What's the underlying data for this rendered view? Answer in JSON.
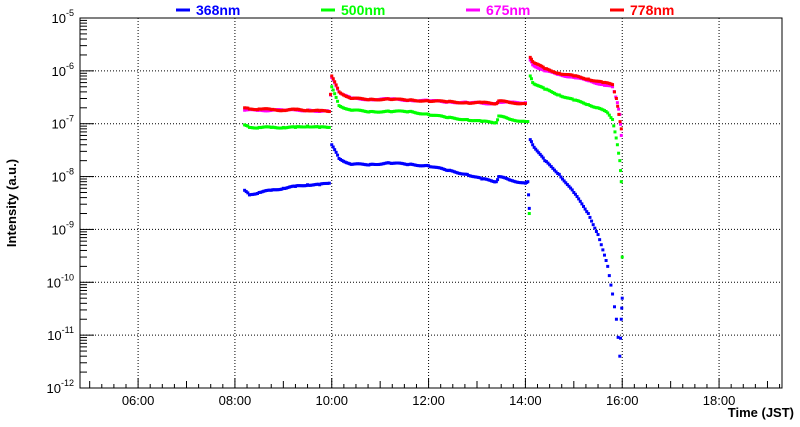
{
  "chart_data": {
    "type": "scatter",
    "title": "",
    "xlabel": "Time (JST)",
    "ylabel": "Intensity (a.u.)",
    "x_unit": "hours (JST)",
    "xlim": [
      4.8,
      19.3
    ],
    "ylim": [
      1e-12,
      1e-05
    ],
    "y_scale": "log",
    "grid": true,
    "legend_position": "top",
    "x_ticks": [
      {
        "value": 6,
        "label": "06:00"
      },
      {
        "value": 8,
        "label": "08:00"
      },
      {
        "value": 10,
        "label": "10:00"
      },
      {
        "value": 12,
        "label": "12:00"
      },
      {
        "value": 14,
        "label": "14:00"
      },
      {
        "value": 16,
        "label": "16:00"
      },
      {
        "value": 18,
        "label": "18:00"
      }
    ],
    "y_ticks": [
      {
        "value": 1e-12,
        "base": "10",
        "exp": "-12"
      },
      {
        "value": 1e-11,
        "base": "10",
        "exp": "-11"
      },
      {
        "value": 1e-10,
        "base": "10",
        "exp": "-10"
      },
      {
        "value": 1e-09,
        "base": "10",
        "exp": "-9"
      },
      {
        "value": 1e-08,
        "base": "10",
        "exp": "-8"
      },
      {
        "value": 1e-07,
        "base": "10",
        "exp": "-7"
      },
      {
        "value": 1e-06,
        "base": "10",
        "exp": "-6"
      },
      {
        "value": 1e-05,
        "base": "10",
        "exp": "-5"
      }
    ],
    "series": [
      {
        "name": "368nm",
        "color": "#0000ff",
        "x": [
          8.2,
          8.3,
          8.5,
          8.75,
          9.0,
          9.25,
          9.5,
          9.75,
          9.95,
          10.0,
          10.15,
          10.4,
          10.8,
          11.2,
          11.6,
          12.0,
          12.4,
          12.8,
          13.1,
          13.4,
          13.45,
          13.7,
          14.0,
          14.05,
          14.08,
          14.1,
          14.15,
          14.4,
          14.7,
          15.0,
          15.3,
          15.5,
          15.7,
          15.8,
          15.88,
          15.95,
          15.98,
          16.0
        ],
        "y": [
          5.5e-09,
          4.5e-09,
          5e-09,
          5.5e-09,
          6e-09,
          6.5e-09,
          7e-09,
          7e-09,
          7.5e-09,
          4e-08,
          2.2e-08,
          1.7e-08,
          1.7e-08,
          1.8e-08,
          1.7e-08,
          1.6e-08,
          1.3e-08,
          1.1e-08,
          9e-09,
          8e-09,
          1e-08,
          8.5e-09,
          7.5e-09,
          8e-09,
          2.5e-09,
          5e-08,
          4e-08,
          2e-08,
          1.1e-08,
          5e-09,
          2e-09,
          8e-10,
          2e-10,
          6e-11,
          2e-11,
          4e-12,
          2e-11,
          5e-11
        ]
      },
      {
        "name": "500nm",
        "color": "#00ff00",
        "x": [
          8.2,
          8.3,
          8.5,
          8.75,
          9.0,
          9.25,
          9.5,
          9.75,
          9.95,
          10.0,
          10.15,
          10.4,
          10.8,
          11.2,
          11.6,
          12.0,
          12.4,
          12.8,
          13.1,
          13.4,
          13.45,
          13.7,
          14.0,
          14.05,
          14.08,
          14.1,
          14.15,
          14.4,
          14.7,
          15.0,
          15.3,
          15.5,
          15.7,
          15.8,
          15.85,
          15.9,
          15.95,
          15.98,
          16.0
        ],
        "y": [
          9.5e-08,
          8.5e-08,
          8.5e-08,
          8.5e-08,
          8.5e-08,
          8.5e-08,
          9e-08,
          8.5e-08,
          8.5e-08,
          5e-07,
          2.2e-07,
          1.8e-07,
          1.7e-07,
          1.7e-07,
          1.7e-07,
          1.5e-07,
          1.3e-07,
          1.2e-07,
          1.1e-07,
          1.05e-07,
          1.4e-07,
          1.2e-07,
          1.1e-07,
          1.1e-07,
          2e-09,
          8e-07,
          6e-07,
          4.5e-07,
          3.5e-07,
          2.8e-07,
          2.3e-07,
          2e-07,
          1.6e-07,
          1.2e-07,
          7e-08,
          4e-08,
          2e-08,
          8e-09,
          3e-10
        ]
      },
      {
        "name": "675nm",
        "color": "#ff00ff",
        "x": [
          8.2,
          8.5,
          9.0,
          9.5,
          9.95,
          10.0,
          10.15,
          10.4,
          10.8,
          11.2,
          11.6,
          12.0,
          12.4,
          12.8,
          13.4,
          13.45,
          13.7,
          14.0,
          14.1,
          14.15,
          14.4,
          14.7,
          15.0,
          15.3,
          15.6,
          15.8,
          15.9,
          15.95,
          15.98
        ],
        "y": [
          1.8e-07,
          1.8e-07,
          1.8e-07,
          1.8e-07,
          1.7e-07,
          7.5e-07,
          4e-07,
          3e-07,
          2.9e-07,
          2.9e-07,
          2.8e-07,
          2.7e-07,
          2.6e-07,
          2.5e-07,
          2.4e-07,
          2.6e-07,
          2.5e-07,
          2.5e-07,
          1.6e-06,
          1.3e-06,
          1e-06,
          8.5e-07,
          7.5e-07,
          6.5e-07,
          5.5e-07,
          5e-07,
          2.5e-07,
          1.5e-07,
          6e-08
        ]
      },
      {
        "name": "778nm",
        "color": "#ff0000",
        "x": [
          8.2,
          8.3,
          8.5,
          8.75,
          9.0,
          9.25,
          9.5,
          9.75,
          9.95,
          10.0,
          10.15,
          10.4,
          10.8,
          11.2,
          11.6,
          12.0,
          12.4,
          12.8,
          13.1,
          13.4,
          13.45,
          13.7,
          14.0,
          14.1,
          14.15,
          14.4,
          14.7,
          15.0,
          15.3,
          15.6,
          15.8,
          15.88,
          15.93,
          15.98
        ],
        "y": [
          2e-07,
          1.9e-07,
          1.9e-07,
          1.85e-07,
          1.8e-07,
          1.85e-07,
          1.8e-07,
          1.75e-07,
          1.7e-07,
          8e-07,
          4e-07,
          3e-07,
          2.9e-07,
          2.9e-07,
          2.8e-07,
          2.7e-07,
          2.6e-07,
          2.5e-07,
          2.5e-07,
          2.4e-07,
          2.7e-07,
          2.5e-07,
          2.4e-07,
          1.8e-06,
          1.5e-06,
          1.1e-06,
          9e-07,
          8e-07,
          7e-07,
          6e-07,
          5.5e-07,
          3e-07,
          1.5e-07,
          8e-08
        ]
      }
    ]
  }
}
